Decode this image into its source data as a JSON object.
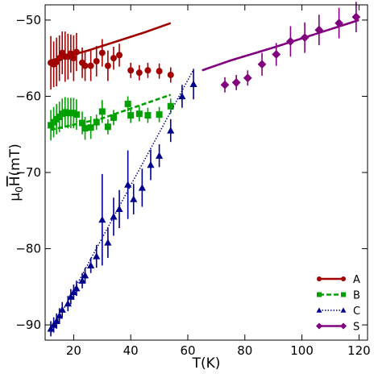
{
  "chart_data": {
    "type": "scatter",
    "xlabel": "T(K)",
    "ylabel": "μ0 H(mT)",
    "xlim": [
      10,
      123
    ],
    "ylim": [
      -92,
      -48
    ],
    "xticks": [
      20,
      40,
      60,
      80,
      100,
      120
    ],
    "yticks": [
      -90,
      -80,
      -70,
      -60,
      -50
    ],
    "legend_position": "bottom-right",
    "grid": false,
    "series": [
      {
        "name": "A",
        "color": "#a00000",
        "marker": "circle",
        "line_style": "solid",
        "points": [
          {
            "x": 12,
            "y": -55.6,
            "err": 3.5
          },
          {
            "x": 13,
            "y": -55.8,
            "err": 3.0
          },
          {
            "x": 14,
            "y": -55.5,
            "err": 3.2
          },
          {
            "x": 15,
            "y": -55.0,
            "err": 3.0
          },
          {
            "x": 16,
            "y": -54.3,
            "err": 2.8
          },
          {
            "x": 17,
            "y": -54.8,
            "err": 3.3
          },
          {
            "x": 18,
            "y": -54.8,
            "err": 3.0
          },
          {
            "x": 19,
            "y": -54.4,
            "err": 2.5
          },
          {
            "x": 20,
            "y": -55.0,
            "err": 3.0
          },
          {
            "x": 21,
            "y": -54.2,
            "err": 2.5
          },
          {
            "x": 23,
            "y": -55.6,
            "err": 2.0
          },
          {
            "x": 24,
            "y": -56.0,
            "err": 2.0
          },
          {
            "x": 26,
            "y": -56.0,
            "err": 2.0
          },
          {
            "x": 28,
            "y": -55.4,
            "err": 2.0
          },
          {
            "x": 30,
            "y": -54.3,
            "err": 1.8
          },
          {
            "x": 32,
            "y": -56.0,
            "err": 2.0
          },
          {
            "x": 34,
            "y": -55.0,
            "err": 1.5
          },
          {
            "x": 36,
            "y": -54.6,
            "err": 1.5
          },
          {
            "x": 40,
            "y": -56.6,
            "err": 1.0
          },
          {
            "x": 43,
            "y": -56.9,
            "err": 1.0
          },
          {
            "x": 46,
            "y": -56.6,
            "err": 1.0
          },
          {
            "x": 50,
            "y": -56.7,
            "err": 1.0
          },
          {
            "x": 54,
            "y": -57.2,
            "err": 1.0
          }
        ],
        "fit_line": {
          "x": [
            12,
            25,
            45,
            54
          ],
          "y": [
            -55.3,
            -54.0,
            -51.6,
            -50.4
          ]
        }
      },
      {
        "name": "B",
        "color": "#00a000",
        "marker": "square",
        "line_style": "dashed",
        "points": [
          {
            "x": 12,
            "y": -63.8,
            "err": 2.0
          },
          {
            "x": 13,
            "y": -63.4,
            "err": 2.0
          },
          {
            "x": 14,
            "y": -63.0,
            "err": 2.0
          },
          {
            "x": 15,
            "y": -62.7,
            "err": 2.0
          },
          {
            "x": 16,
            "y": -62.3,
            "err": 2.0
          },
          {
            "x": 17,
            "y": -62.1,
            "err": 2.0
          },
          {
            "x": 18,
            "y": -62.2,
            "err": 2.0
          },
          {
            "x": 19,
            "y": -62.2,
            "err": 2.0
          },
          {
            "x": 20,
            "y": -62.2,
            "err": 2.0
          },
          {
            "x": 21,
            "y": -62.4,
            "err": 2.0
          },
          {
            "x": 23,
            "y": -63.5,
            "err": 1.5
          },
          {
            "x": 24,
            "y": -64.2,
            "err": 1.5
          },
          {
            "x": 26,
            "y": -64.1,
            "err": 1.5
          },
          {
            "x": 28,
            "y": -63.4,
            "err": 1.0
          },
          {
            "x": 30,
            "y": -62.0,
            "err": 1.5
          },
          {
            "x": 32,
            "y": -64.0,
            "err": 1.0
          },
          {
            "x": 34,
            "y": -62.8,
            "err": 1.0
          },
          {
            "x": 39,
            "y": -61.0,
            "err": 1.0
          },
          {
            "x": 40,
            "y": -62.5,
            "err": 1.0
          },
          {
            "x": 43,
            "y": -62.3,
            "err": 1.0
          },
          {
            "x": 46,
            "y": -62.5,
            "err": 1.0
          },
          {
            "x": 50,
            "y": -62.4,
            "err": 1.0
          },
          {
            "x": 54,
            "y": -61.3,
            "err": 1.0
          }
        ],
        "fit_line": {
          "x": [
            12,
            30,
            54
          ],
          "y": [
            -64.4,
            -62.9,
            -59.8
          ]
        }
      },
      {
        "name": "C",
        "color": "#00008b",
        "marker": "triangle",
        "line_style": "dotted",
        "points": [
          {
            "x": 12,
            "y": -90.5,
            "err": 1.0
          },
          {
            "x": 13,
            "y": -90.0,
            "err": 1.0
          },
          {
            "x": 14,
            "y": -89.5,
            "err": 1.0
          },
          {
            "x": 15,
            "y": -88.8,
            "err": 1.0
          },
          {
            "x": 16,
            "y": -88.0,
            "err": 1.0
          },
          {
            "x": 18,
            "y": -87.2,
            "err": 1.0
          },
          {
            "x": 19,
            "y": -86.3,
            "err": 1.0
          },
          {
            "x": 20,
            "y": -85.7,
            "err": 1.0
          },
          {
            "x": 21,
            "y": -85.2,
            "err": 1.0
          },
          {
            "x": 23,
            "y": -84.2,
            "err": 1.0
          },
          {
            "x": 24,
            "y": -83.5,
            "err": 1.0
          },
          {
            "x": 26,
            "y": -82.2,
            "err": 1.0
          },
          {
            "x": 28,
            "y": -81.0,
            "err": 1.5
          },
          {
            "x": 30,
            "y": -76.2,
            "err": 6.0
          },
          {
            "x": 32,
            "y": -79.2,
            "err": 2.0
          },
          {
            "x": 34,
            "y": -75.8,
            "err": 2.5
          },
          {
            "x": 36,
            "y": -74.8,
            "err": 2.5
          },
          {
            "x": 39,
            "y": -71.6,
            "err": 4.5
          },
          {
            "x": 41,
            "y": -73.5,
            "err": 2.0
          },
          {
            "x": 44,
            "y": -72.0,
            "err": 2.5
          },
          {
            "x": 47,
            "y": -69.0,
            "err": 2.0
          },
          {
            "x": 50,
            "y": -67.8,
            "err": 1.5
          },
          {
            "x": 54,
            "y": -64.5,
            "err": 1.5
          },
          {
            "x": 58,
            "y": -60.0,
            "err": 1.5
          },
          {
            "x": 62,
            "y": -58.4,
            "err": 2.0
          }
        ],
        "fit_line": {
          "x": [
            12,
            62
          ],
          "y": [
            -91.0,
            -56.5
          ]
        }
      },
      {
        "name": "S",
        "color": "#800080",
        "marker": "diamond",
        "line_style": "solid",
        "points": [
          {
            "x": 73,
            "y": -58.5,
            "err": 1.0
          },
          {
            "x": 77,
            "y": -58.2,
            "err": 1.0
          },
          {
            "x": 81,
            "y": -57.6,
            "err": 1.0
          },
          {
            "x": 86,
            "y": -55.8,
            "err": 1.5
          },
          {
            "x": 91,
            "y": -54.5,
            "err": 1.5
          },
          {
            "x": 96,
            "y": -52.8,
            "err": 2.0
          },
          {
            "x": 101,
            "y": -52.3,
            "err": 2.0
          },
          {
            "x": 106,
            "y": -51.3,
            "err": 2.0
          },
          {
            "x": 113,
            "y": -50.4,
            "err": 2.0
          },
          {
            "x": 119,
            "y": -49.6,
            "err": 2.0
          }
        ],
        "fit_line": {
          "x": [
            65,
            75,
            90,
            105,
            120
          ],
          "y": [
            -56.6,
            -55.3,
            -53.6,
            -51.8,
            -50.0
          ]
        }
      }
    ]
  }
}
